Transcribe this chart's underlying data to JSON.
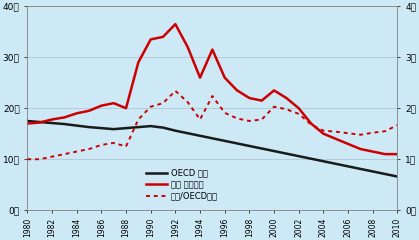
{
  "years": [
    1980,
    1981,
    1982,
    1983,
    1984,
    1985,
    1986,
    1987,
    1988,
    1989,
    1990,
    1991,
    1992,
    1993,
    1994,
    1995,
    1996,
    1997,
    1998,
    1999,
    2000,
    2001,
    2002,
    2003,
    2004,
    2005,
    2006,
    2007,
    2008,
    2009,
    2010
  ],
  "oecd_avg": [
    17.5,
    17.3,
    17.1,
    16.9,
    16.6,
    16.3,
    16.1,
    15.9,
    16.1,
    16.3,
    16.5,
    16.2,
    15.6,
    15.1,
    14.6,
    14.1,
    13.6,
    13.1,
    12.6,
    12.1,
    11.6,
    11.1,
    10.6,
    10.1,
    9.6,
    9.1,
    8.6,
    8.1,
    7.6,
    7.1,
    6.6
  ],
  "korea_deaths": [
    17.0,
    17.2,
    17.8,
    18.2,
    19.0,
    19.5,
    20.5,
    21.0,
    20.0,
    29.0,
    33.5,
    34.0,
    36.5,
    32.0,
    26.0,
    31.5,
    26.0,
    23.5,
    22.0,
    21.5,
    23.5,
    22.0,
    20.0,
    17.0,
    15.0,
    14.0,
    13.0,
    12.0,
    11.5,
    11.0,
    11.0
  ],
  "korea_oecd_ratio": [
    1.0,
    1.0,
    1.05,
    1.1,
    1.15,
    1.2,
    1.28,
    1.32,
    1.25,
    1.78,
    2.03,
    2.1,
    2.34,
    2.12,
    1.78,
    2.24,
    1.91,
    1.8,
    1.75,
    1.78,
    2.03,
    1.98,
    1.89,
    1.68,
    1.56,
    1.54,
    1.51,
    1.48,
    1.52,
    1.55,
    1.67
  ],
  "bg_color": "#cce9f5",
  "oecd_color": "#1a1a1a",
  "korea_color": "#cc0000",
  "ratio_color": "#cc0000",
  "left_ylim": [
    0,
    40
  ],
  "right_ylim": [
    0,
    4
  ],
  "left_yticks": [
    0,
    10,
    20,
    30,
    40
  ],
  "right_yticks": [
    0,
    1,
    2,
    3,
    4
  ],
  "left_yticklabels": [
    "0명",
    "10명",
    "20명",
    "30명",
    "40명"
  ],
  "right_yticklabels": [
    "0배",
    "1배",
    "2배",
    "3배",
    "4배"
  ],
  "legend_items": [
    "OECD 평균",
    "한국 사망자수",
    "한국/OECD평균"
  ],
  "grid_color": "#b0c8d4",
  "xtick_years": [
    1980,
    1982,
    1984,
    1986,
    1988,
    1990,
    1992,
    1994,
    1996,
    1998,
    2000,
    2002,
    2004,
    2006,
    2008,
    2010
  ]
}
